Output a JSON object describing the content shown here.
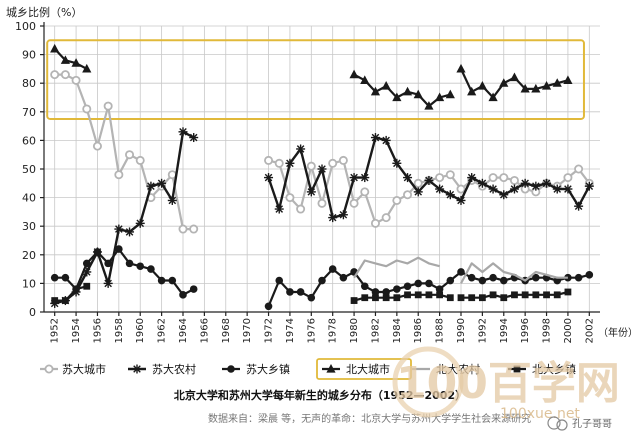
{
  "chart_data": {
    "type": "line",
    "ylabel": "城乡比例（%）",
    "xunit": "（年份）",
    "ylim": [
      0,
      100
    ],
    "yticks": [
      0,
      10,
      20,
      30,
      40,
      50,
      60,
      70,
      80,
      90,
      100
    ],
    "xlim": [
      1951,
      2003
    ],
    "xticks": [
      1952,
      1954,
      1956,
      1958,
      1960,
      1962,
      1964,
      1966,
      1968,
      1970,
      1972,
      1974,
      1976,
      1978,
      1980,
      1982,
      1984,
      1986,
      1988,
      1990,
      1992,
      1994,
      1996,
      1998,
      2000,
      2002
    ],
    "grid": true,
    "title": "北京大学和苏州大学每年新生的城乡分布（1952—2002）",
    "highlight_box": {
      "x_from": 1951.3,
      "x_to": 2001.5,
      "y_from": 67.5,
      "y_to": 95
    },
    "series": [
      {
        "name": "苏大城市",
        "color": "#b4b4b4",
        "marker": "circle-open",
        "width": 2.2,
        "segments": [
          [
            [
              1952,
              83
            ],
            [
              1953,
              83
            ],
            [
              1954,
              81
            ],
            [
              1955,
              71
            ],
            [
              1956,
              58
            ],
            [
              1957,
              72
            ],
            [
              1958,
              48
            ],
            [
              1959,
              55
            ],
            [
              1960,
              53
            ],
            [
              1961,
              40
            ],
            [
              1962,
              44
            ],
            [
              1963,
              48
            ],
            [
              1964,
              29
            ],
            [
              1965,
              29
            ]
          ],
          [
            [
              1972,
              53
            ],
            [
              1973,
              52
            ],
            [
              1974,
              40
            ],
            [
              1975,
              36
            ],
            [
              1976,
              51
            ],
            [
              1977,
              38
            ],
            [
              1978,
              52
            ],
            [
              1979,
              53
            ],
            [
              1980,
              38
            ],
            [
              1981,
              42
            ],
            [
              1982,
              31
            ],
            [
              1983,
              33
            ],
            [
              1984,
              39
            ],
            [
              1985,
              41
            ],
            [
              1986,
              45
            ],
            [
              1987,
              46
            ],
            [
              1988,
              47
            ],
            [
              1989,
              48
            ],
            [
              1990,
              43
            ],
            [
              1991,
              46
            ],
            [
              1992,
              44
            ],
            [
              1993,
              47
            ],
            [
              1994,
              47
            ],
            [
              1995,
              46
            ],
            [
              1996,
              43
            ],
            [
              1997,
              42
            ],
            [
              1998,
              45
            ],
            [
              1999,
              44
            ],
            [
              2000,
              47
            ],
            [
              2001,
              50
            ],
            [
              2002,
              45
            ]
          ]
        ]
      },
      {
        "name": "苏大农村",
        "color": "#1a1a1a",
        "marker": "star",
        "width": 2.4,
        "segments": [
          [
            [
              1952,
              3
            ],
            [
              1953,
              4
            ],
            [
              1954,
              7
            ],
            [
              1955,
              14
            ],
            [
              1956,
              21
            ],
            [
              1957,
              10
            ],
            [
              1958,
              29
            ],
            [
              1959,
              28
            ],
            [
              1960,
              31
            ],
            [
              1961,
              44
            ],
            [
              1962,
              45
            ],
            [
              1963,
              39
            ],
            [
              1964,
              63
            ],
            [
              1965,
              61
            ]
          ],
          [
            [
              1972,
              47
            ],
            [
              1973,
              36
            ],
            [
              1974,
              52
            ],
            [
              1975,
              57
            ],
            [
              1976,
              42
            ],
            [
              1977,
              50
            ],
            [
              1978,
              33
            ],
            [
              1979,
              34
            ],
            [
              1980,
              47
            ],
            [
              1981,
              47
            ],
            [
              1982,
              61
            ],
            [
              1983,
              60
            ],
            [
              1984,
              52
            ],
            [
              1985,
              47
            ],
            [
              1986,
              42
            ],
            [
              1987,
              46
            ],
            [
              1988,
              43
            ],
            [
              1989,
              41
            ],
            [
              1990,
              39
            ],
            [
              1991,
              47
            ],
            [
              1992,
              45
            ],
            [
              1993,
              43
            ],
            [
              1994,
              41
            ],
            [
              1995,
              43
            ],
            [
              1996,
              45
            ],
            [
              1997,
              44
            ],
            [
              1998,
              45
            ],
            [
              1999,
              43
            ],
            [
              2000,
              43
            ],
            [
              2001,
              37
            ],
            [
              2002,
              44
            ]
          ]
        ]
      },
      {
        "name": "苏大乡镇",
        "color": "#1a1a1a",
        "marker": "circle-filled",
        "width": 2.2,
        "segments": [
          [
            [
              1952,
              12
            ],
            [
              1953,
              12
            ],
            [
              1954,
              8
            ],
            [
              1955,
              17
            ],
            [
              1956,
              21
            ],
            [
              1957,
              17
            ],
            [
              1958,
              22
            ],
            [
              1959,
              17
            ],
            [
              1960,
              16
            ],
            [
              1961,
              15
            ],
            [
              1962,
              11
            ],
            [
              1963,
              11
            ],
            [
              1964,
              6
            ],
            [
              1965,
              8
            ]
          ],
          [
            [
              1972,
              2
            ],
            [
              1973,
              11
            ],
            [
              1974,
              7
            ],
            [
              1975,
              7
            ],
            [
              1976,
              5
            ],
            [
              1977,
              11
            ],
            [
              1978,
              15
            ],
            [
              1979,
              12
            ],
            [
              1980,
              14
            ],
            [
              1981,
              9
            ],
            [
              1982,
              7
            ],
            [
              1983,
              7
            ],
            [
              1984,
              8
            ],
            [
              1985,
              9
            ],
            [
              1986,
              10
            ],
            [
              1987,
              10
            ],
            [
              1988,
              8
            ],
            [
              1989,
              11
            ],
            [
              1990,
              14
            ],
            [
              1991,
              12
            ],
            [
              1992,
              11
            ],
            [
              1993,
              12
            ],
            [
              1994,
              11
            ],
            [
              1995,
              12
            ],
            [
              1996,
              11
            ],
            [
              1997,
              12
            ],
            [
              1998,
              12
            ],
            [
              1999,
              11
            ],
            [
              2000,
              12
            ],
            [
              2001,
              12
            ],
            [
              2002,
              13
            ]
          ]
        ]
      },
      {
        "name": "北大城市",
        "color": "#1a1a1a",
        "marker": "triangle",
        "width": 2.2,
        "segments": [
          [
            [
              1952,
              92
            ],
            [
              1953,
              88
            ],
            [
              1954,
              87
            ],
            [
              1955,
              85
            ]
          ],
          [
            [
              1980,
              83
            ],
            [
              1981,
              81
            ],
            [
              1982,
              77
            ],
            [
              1983,
              79
            ],
            [
              1984,
              75
            ],
            [
              1985,
              77
            ],
            [
              1986,
              76
            ],
            [
              1987,
              72
            ],
            [
              1988,
              75
            ],
            [
              1989,
              76
            ]
          ],
          [
            [
              1990,
              85
            ],
            [
              1991,
              77
            ],
            [
              1992,
              79
            ],
            [
              1993,
              75
            ],
            [
              1994,
              80
            ],
            [
              1995,
              82
            ],
            [
              1996,
              78
            ],
            [
              1997,
              78
            ],
            [
              1998,
              79
            ],
            [
              1999,
              80
            ],
            [
              2000,
              81
            ]
          ]
        ]
      },
      {
        "name": "北大农村",
        "color": "#a8a8a8",
        "marker": "none",
        "width": 2.2,
        "segments": [
          [
            [
              1980,
              12
            ],
            [
              1981,
              18
            ],
            [
              1982,
              17
            ],
            [
              1983,
              16
            ],
            [
              1984,
              18
            ],
            [
              1985,
              17
            ],
            [
              1986,
              19
            ],
            [
              1987,
              17
            ],
            [
              1988,
              16
            ]
          ],
          [
            [
              1990,
              10
            ],
            [
              1991,
              17
            ],
            [
              1992,
              14
            ],
            [
              1993,
              17
            ],
            [
              1994,
              14
            ],
            [
              1995,
              13
            ],
            [
              1996,
              11
            ],
            [
              1997,
              14
            ],
            [
              1998,
              13
            ],
            [
              1999,
              12
            ],
            [
              2000,
              12
            ]
          ]
        ]
      },
      {
        "name": "北大乡镇",
        "color": "#1a1a1a",
        "marker": "square",
        "width": 2.2,
        "segments": [
          [
            [
              1952,
              4
            ],
            [
              1953,
              4
            ],
            [
              1954,
              8
            ],
            [
              1955,
              9
            ]
          ],
          [
            [
              1980,
              4
            ],
            [
              1981,
              5
            ],
            [
              1982,
              5
            ],
            [
              1983,
              5
            ],
            [
              1984,
              5
            ],
            [
              1985,
              6
            ],
            [
              1986,
              6
            ],
            [
              1987,
              6
            ],
            [
              1988,
              6
            ],
            [
              1989,
              5
            ]
          ],
          [
            [
              1990,
              5
            ],
            [
              1991,
              5
            ],
            [
              1992,
              5
            ],
            [
              1993,
              6
            ],
            [
              1994,
              5
            ],
            [
              1995,
              6
            ],
            [
              1996,
              6
            ],
            [
              1997,
              6
            ],
            [
              1998,
              6
            ],
            [
              1999,
              6
            ],
            [
              2000,
              7
            ]
          ]
        ]
      }
    ]
  },
  "caption": {
    "source_prefix": "数据来自：梁晨 等，无声的革命：北京大学与苏州大学学生社会来源研究",
    "watermark_text": "100百学网",
    "watermark_url": "100xue.net",
    "credit": "孔子哥哥"
  }
}
